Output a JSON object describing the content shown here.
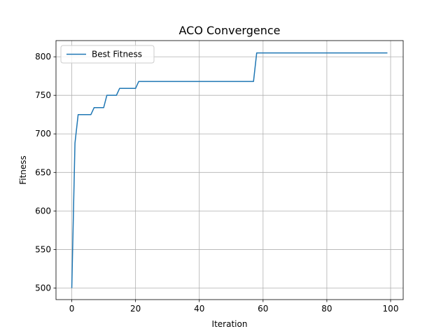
{
  "chart_data": {
    "type": "line",
    "title": "ACO Convergence",
    "xlabel": "Iteration",
    "ylabel": "Fitness",
    "xlim": [
      -4.95,
      103.95
    ],
    "ylim": [
      485.0,
      821.0
    ],
    "xticks": [
      0,
      20,
      40,
      60,
      80,
      100
    ],
    "yticks": [
      500,
      550,
      600,
      650,
      700,
      750,
      800
    ],
    "grid": true,
    "legend_position": "top-left",
    "series": [
      {
        "name": "Best Fitness",
        "color": "#1f77b4",
        "points": [
          [
            0,
            500
          ],
          [
            1,
            688
          ],
          [
            2,
            725
          ],
          [
            3,
            725
          ],
          [
            4,
            725
          ],
          [
            5,
            725
          ],
          [
            6,
            725
          ],
          [
            7,
            734
          ],
          [
            8,
            734
          ],
          [
            9,
            734
          ],
          [
            10,
            734
          ],
          [
            11,
            750
          ],
          [
            12,
            750
          ],
          [
            13,
            750
          ],
          [
            14,
            750
          ],
          [
            15,
            759
          ],
          [
            16,
            759
          ],
          [
            17,
            759
          ],
          [
            18,
            759
          ],
          [
            19,
            759
          ],
          [
            20,
            759
          ],
          [
            21,
            768
          ],
          [
            30,
            768
          ],
          [
            40,
            768
          ],
          [
            50,
            768
          ],
          [
            57,
            768
          ],
          [
            58,
            805
          ],
          [
            70,
            805
          ],
          [
            80,
            805
          ],
          [
            90,
            805
          ],
          [
            99,
            805
          ]
        ]
      }
    ]
  }
}
